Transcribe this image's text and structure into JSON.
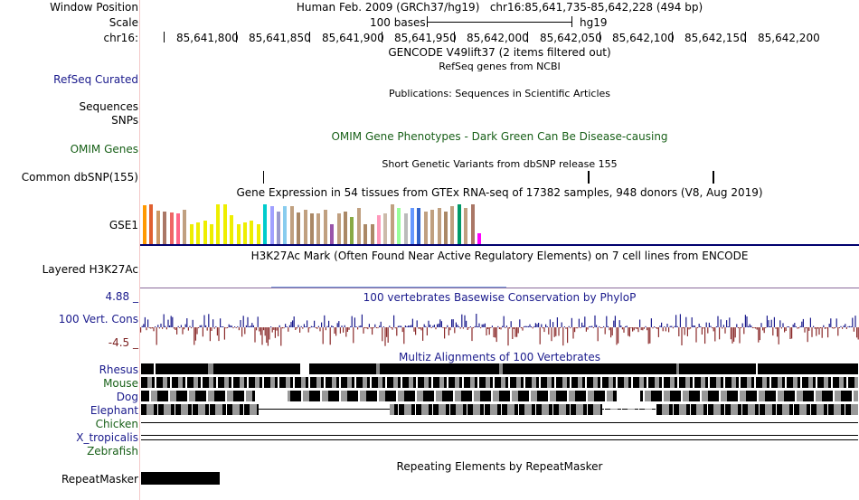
{
  "header": {
    "window_position_label": "Window Position",
    "window_position_value": "Human Feb. 2009 (GRCh37/hg19)   chr16:85,641,735-85,642,228 (494 bp)",
    "scale_label": "Scale",
    "scale_value": "100 bases",
    "scale_assembly": "hg19",
    "chrom_label": "chr16:",
    "ticks": [
      "85,641,800",
      "85,641,850",
      "85,641,900",
      "85,641,950",
      "85,642,000",
      "85,642,050",
      "85,642,100",
      "85,642,150",
      "85,642,200"
    ]
  },
  "tracks": {
    "gencode_title": "GENCODE V49lift37 (2 items filtered out)",
    "refseq_label": "RefSeq Curated",
    "refseq_title": "RefSeq genes from NCBI",
    "publications_title": "Publications: Sequences in Scientific Articles",
    "sequences_label": "Sequences",
    "snps_label": "SNPs",
    "omim_label": "OMIM Genes",
    "omim_title": "OMIM Gene Phenotypes - Dark Green Can Be Disease-causing",
    "dbsnp_title": "Short Genetic Variants from dbSNP release 155",
    "common_dbsnp_label": "Common dbSNP(155)",
    "gtex_title": "Gene Expression in 54 tissues from GTEx RNA-seq of 17382 samples, 948 donors (V8, Aug 2019)",
    "gse1_label": "GSE1",
    "h3k27ac_title": "H3K27Ac Mark (Often Found Near Active Regulatory Elements) on 7 cell lines from ENCODE",
    "h3k27ac_label": "Layered H3K27Ac",
    "phylop_max": "4.88 _",
    "phylop_min": "-4.5 _",
    "phylop_label": "100 Vert. Cons",
    "phylop_title": "100 vertebrates Basewise Conservation by PhyloP",
    "multiz_title": "Multiz Alignments of 100 Vertebrates",
    "species": [
      "Rhesus",
      "Mouse",
      "Dog",
      "Elephant",
      "Chicken",
      "X_tropicalis",
      "Zebrafish"
    ],
    "repeat_title": "Repeating Elements by RepeatMasker",
    "repeat_label": "RepeatMasker"
  },
  "colors": {
    "gtex_bars": [
      "#ff9900",
      "#e06030",
      "#cc9966",
      "#aa7766",
      "#ee6666",
      "#ff6688",
      "#c0a080",
      "#eeee00",
      "#eeee00",
      "#eeee00",
      "#eeee00",
      "#eeee00",
      "#eeee00",
      "#eeee00",
      "#eeee00",
      "#eeee00",
      "#eeee00",
      "#eeee00",
      "#00cccc",
      "#a0a0ff",
      "#9999cc",
      "#88ccee",
      "#c0a080",
      "#aa8866",
      "#c0a080",
      "#aa8866",
      "#c0a080",
      "#c0a080",
      "#9955aa",
      "#c0a080",
      "#aa8866",
      "#88aa44",
      "#c0a080",
      "#aa8866",
      "#aa8866",
      "#ff99bb",
      "#ccbbaa",
      "#c0a080",
      "#99ff99",
      "#bbbbbb",
      "#6699ff",
      "#3366cc",
      "#c0a080",
      "#c0a080",
      "#c0a080",
      "#aa8866",
      "#c0a080",
      "#009966",
      "#c0a080",
      "#aa7766",
      "#ff00ff"
    ]
  }
}
